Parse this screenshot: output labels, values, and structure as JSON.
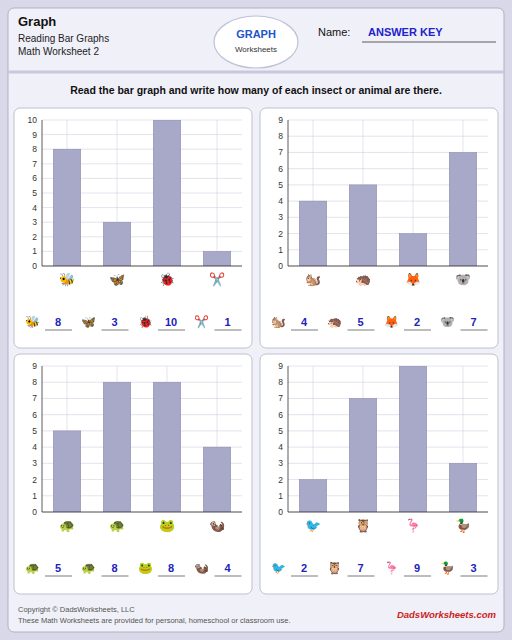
{
  "title": "Graph",
  "subtitle": [
    "Reading Bar Graphs",
    "Math Worksheet 2"
  ],
  "logo": [
    "GRAPH",
    "Worksheets"
  ],
  "name_label": "Name:",
  "answer_key": "ANSWER KEY",
  "instruction": "Read the bar graph and write how many of each insect or animal are there.",
  "footer": [
    "Copyright © DadsWorksheets, LLC",
    "These Math Worksheets are provided for personal, homeschool or classroom use."
  ],
  "watermark": "DadsWorksheets.com",
  "chart_data": [
    {
      "type": "bar",
      "categories": [
        "🐝",
        "🦋",
        "🐞",
        "✂️"
      ],
      "values": [
        8,
        3,
        10,
        1
      ],
      "annotations": [
        "8",
        "3",
        "10",
        "1"
      ],
      "color": "#a8a8c8",
      "ylim": [
        0,
        10
      ],
      "yticks": [
        0,
        1,
        2,
        3,
        4,
        5,
        6,
        7,
        8,
        9,
        10
      ],
      "grid": true
    },
    {
      "type": "bar",
      "categories": [
        "🐿️",
        "🦔",
        "🦊",
        "🐨"
      ],
      "values": [
        4,
        5,
        2,
        7
      ],
      "annotations": [
        "4",
        "5",
        "2",
        "7"
      ],
      "color": "#a8a8c8",
      "ylim": [
        0,
        9
      ],
      "yticks": [
        0,
        1,
        2,
        3,
        4,
        5,
        6,
        7,
        8,
        9
      ],
      "grid": true
    },
    {
      "type": "bar",
      "categories": [
        "🐢",
        "🐢",
        "🐸",
        "🦦"
      ],
      "values": [
        5,
        8,
        8,
        4
      ],
      "annotations": [
        "5",
        "8",
        "8",
        "4"
      ],
      "color": "#a8a8c8",
      "ylim": [
        0,
        9
      ],
      "yticks": [
        0,
        1,
        2,
        3,
        4,
        5,
        6,
        7,
        8,
        9
      ],
      "grid": true
    },
    {
      "type": "bar",
      "categories": [
        "🐦",
        "🦉",
        "🦩",
        "🦆"
      ],
      "values": [
        2,
        7,
        9,
        3
      ],
      "annotations": [
        "2",
        "7",
        "9",
        "3"
      ],
      "color": "#a8a8c8",
      "ylim": [
        0,
        9
      ],
      "yticks": [
        0,
        1,
        2,
        3,
        4,
        5,
        6,
        7,
        8,
        9
      ],
      "grid": true
    }
  ]
}
